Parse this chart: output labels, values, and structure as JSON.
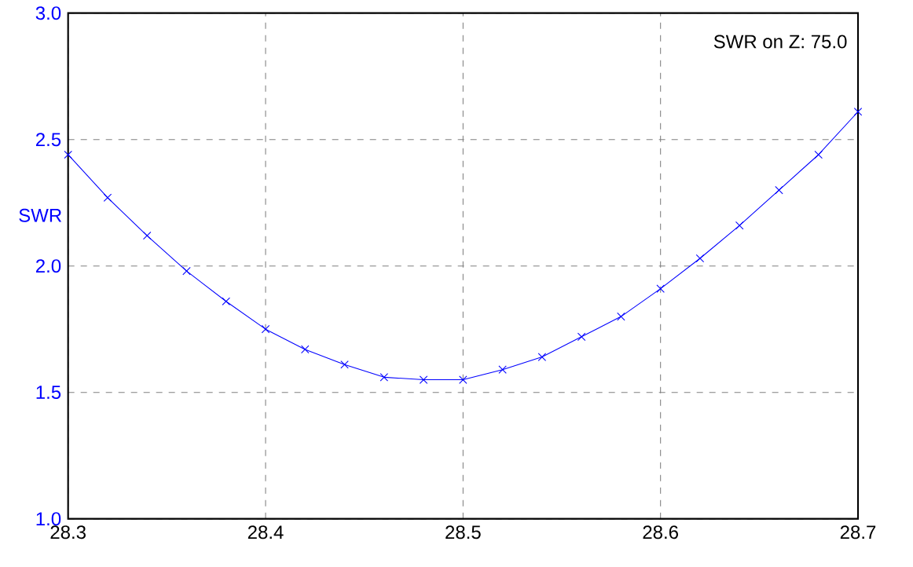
{
  "chart_data": {
    "type": "line",
    "ylabel": "SWR",
    "annotations": [
      "SWR on Z: 75.0"
    ],
    "x": [
      28.3,
      28.32,
      28.34,
      28.36,
      28.38,
      28.4,
      28.42,
      28.44,
      28.46,
      28.48,
      28.5,
      28.52,
      28.54,
      28.56,
      28.58,
      28.6,
      28.62,
      28.64,
      28.66,
      28.68,
      28.7
    ],
    "series": [
      {
        "color": "#0000ff",
        "values": [
          2.44,
          2.27,
          2.12,
          1.98,
          1.86,
          1.75,
          1.67,
          1.61,
          1.56,
          1.55,
          1.55,
          1.59,
          1.64,
          1.72,
          1.8,
          1.91,
          2.03,
          2.16,
          2.3,
          2.44,
          2.61
        ]
      }
    ],
    "xlim": [
      28.3,
      28.7
    ],
    "ylim": [
      1.0,
      3.0
    ],
    "xticks": [
      {
        "value": 28.3,
        "label": "28.3"
      },
      {
        "value": 28.4,
        "label": "28.4"
      },
      {
        "value": 28.5,
        "label": "28.5"
      },
      {
        "value": 28.6,
        "label": "28.6"
      },
      {
        "value": 28.7,
        "label": "28.7"
      }
    ],
    "yticks": [
      {
        "value": 1.0,
        "label": "1.0"
      },
      {
        "value": 1.5,
        "label": "1.5"
      },
      {
        "value": 2.0,
        "label": "2.0"
      },
      {
        "value": 2.5,
        "label": "2.5"
      },
      {
        "value": 3.0,
        "label": "3.0"
      }
    ],
    "grid": true,
    "marker": "cross",
    "line_style": "solid"
  }
}
